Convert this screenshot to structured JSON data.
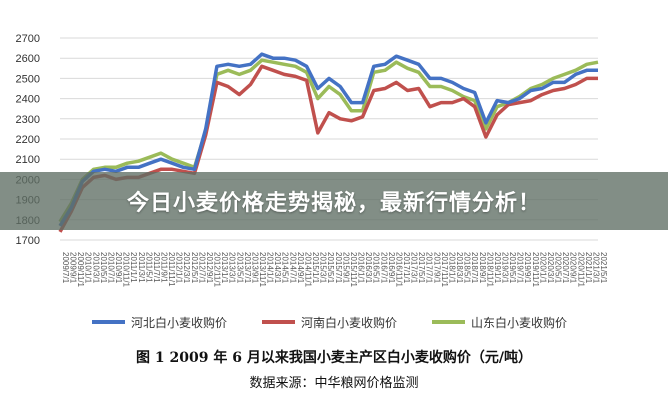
{
  "banner": {
    "text": "今日小麦价格走势揭秘，最新行情分析！"
  },
  "caption": {
    "title": "图 1   2009 年 6 月以来我国小麦主产区白小麦收购价（元/吨）",
    "source": "数据来源：中华粮网价格监测"
  },
  "colors": {
    "hebei": "#4472c4",
    "henan": "#c0504d",
    "shandong": "#9bbb59",
    "grid": "#d9d9d9"
  },
  "chart_data": {
    "type": "line",
    "title": "",
    "xlabel": "",
    "ylabel": "",
    "ylim": [
      1700,
      2700
    ],
    "y_ticks": [
      "2700",
      "2600",
      "2500",
      "2400",
      "2300",
      "2200",
      "2100",
      "2000",
      "1900",
      "1800",
      "1700"
    ],
    "x_tick_labels": [
      "2009/7/1",
      "2009/9/1",
      "2009/11/1",
      "2010/1/1",
      "2010/3/1",
      "2010/5/1",
      "2010/7/1",
      "2010/9/1",
      "2010/11/1",
      "2011/1/1",
      "2011/3/1",
      "2011/5/1",
      "2011/7/1",
      "2011/9/1",
      "2011/11/1",
      "2012/1/1",
      "2012/3/1",
      "2012/5/1",
      "2012/7/1",
      "2012/9/1",
      "2012/11/1",
      "2013/1/1",
      "2013/3/1",
      "2013/5/1",
      "2013/7/1",
      "2013/9/1",
      "2013/11/1",
      "2014/1/1",
      "2014/3/1",
      "2014/5/1",
      "2014/7/1",
      "2014/9/1",
      "2014/11/1",
      "2015/1/1",
      "2015/3/1",
      "2015/5/1",
      "2015/7/1",
      "2015/9/1",
      "2015/11/1",
      "2016/1/1",
      "2016/3/1",
      "2016/5/1",
      "2016/7/1",
      "2016/9/1",
      "2016/11/1",
      "2017/1/1",
      "2017/3/1",
      "2017/5/1",
      "2017/7/1",
      "2017/9/1",
      "2017/11/1",
      "2018/1/1",
      "2018/3/1",
      "2018/5/1",
      "2018/7/1",
      "2018/9/1",
      "2018/11/1",
      "2019/1/1",
      "2019/3/1",
      "2019/5/1",
      "2019/7/1",
      "2019/9/1",
      "2019/11/1",
      "2020/1/1",
      "2020/3/1",
      "2020/5/1",
      "2020/7/1",
      "2020/9/1",
      "2020/11/1",
      "2021/1/1",
      "2021/3/1",
      "2021/5/1"
    ],
    "x": [
      "2009-07",
      "2009-10",
      "2010-01",
      "2010-04",
      "2010-07",
      "2010-10",
      "2011-01",
      "2011-04",
      "2011-07",
      "2011-10",
      "2012-01",
      "2012-04",
      "2012-07",
      "2012-10",
      "2013-01",
      "2013-04",
      "2013-07",
      "2013-10",
      "2014-01",
      "2014-04",
      "2014-07",
      "2014-10",
      "2015-01",
      "2015-04",
      "2015-07",
      "2015-10",
      "2016-01",
      "2016-04",
      "2016-07",
      "2016-10",
      "2017-01",
      "2017-04",
      "2017-07",
      "2017-10",
      "2018-01",
      "2018-04",
      "2018-07",
      "2018-10",
      "2019-01",
      "2019-04",
      "2019-07",
      "2019-10",
      "2020-01",
      "2020-04",
      "2020-07",
      "2020-10",
      "2021-01",
      "2021-04",
      "2021-05"
    ],
    "series": [
      {
        "name": "河北白小麦收购价",
        "color_key": "hebei",
        "values": [
          1770,
          1860,
          1990,
          2040,
          2050,
          2040,
          2060,
          2060,
          2080,
          2100,
          2080,
          2060,
          2050,
          2250,
          2560,
          2570,
          2560,
          2570,
          2620,
          2600,
          2600,
          2590,
          2560,
          2450,
          2500,
          2460,
          2380,
          2380,
          2560,
          2570,
          2610,
          2590,
          2570,
          2500,
          2500,
          2480,
          2450,
          2430,
          2280,
          2390,
          2380,
          2400,
          2440,
          2450,
          2480,
          2480,
          2520,
          2540,
          2540
        ]
      },
      {
        "name": "河南白小麦收购价",
        "color_key": "henan",
        "values": [
          1740,
          1840,
          1960,
          2010,
          2020,
          2000,
          2010,
          2010,
          2030,
          2050,
          2050,
          2040,
          2030,
          2220,
          2480,
          2460,
          2420,
          2470,
          2560,
          2540,
          2520,
          2510,
          2490,
          2230,
          2330,
          2300,
          2290,
          2310,
          2440,
          2450,
          2480,
          2440,
          2450,
          2360,
          2380,
          2380,
          2400,
          2360,
          2210,
          2320,
          2370,
          2380,
          2390,
          2420,
          2440,
          2450,
          2470,
          2500,
          2500
        ]
      },
      {
        "name": "山东白小麦收购价",
        "color_key": "shandong",
        "values": [
          1790,
          1880,
          2000,
          2050,
          2060,
          2060,
          2080,
          2090,
          2110,
          2130,
          2100,
          2080,
          2060,
          2240,
          2520,
          2540,
          2520,
          2540,
          2590,
          2580,
          2570,
          2560,
          2530,
          2400,
          2460,
          2420,
          2340,
          2340,
          2530,
          2540,
          2580,
          2550,
          2530,
          2460,
          2460,
          2440,
          2410,
          2390,
          2250,
          2360,
          2380,
          2410,
          2450,
          2470,
          2500,
          2520,
          2540,
          2570,
          2580
        ]
      }
    ],
    "legend": "bottom",
    "grid": true
  }
}
